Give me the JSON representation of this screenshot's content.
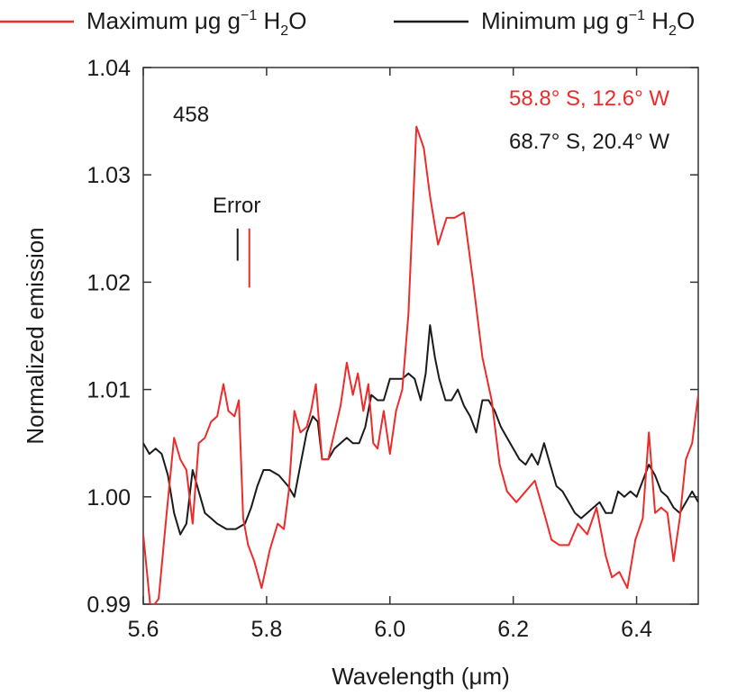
{
  "chart_data": {
    "type": "line",
    "panel_label": "458",
    "xlabel": "Wavelength (μm)",
    "ylabel": "Normalized emission",
    "xlim": [
      5.6,
      6.5
    ],
    "ylim": [
      0.99,
      1.04
    ],
    "x_ticks": [
      5.6,
      5.8,
      6.0,
      6.2,
      6.4
    ],
    "x_tick_labels": [
      "5.6",
      "5.8",
      "6.0",
      "6.2",
      "6.4"
    ],
    "y_ticks": [
      0.99,
      1.0,
      1.01,
      1.02,
      1.03,
      1.04
    ],
    "y_tick_labels": [
      "0.99",
      "1.00",
      "1.01",
      "1.02",
      "1.03",
      "1.04"
    ],
    "grid": false,
    "legend": {
      "placement": "top",
      "entries": [
        {
          "series": 0,
          "text": "Maximum μg g",
          "sup": "−1",
          "tail": " H",
          "sub": "2",
          "end": "O"
        },
        {
          "series": 1,
          "text": "Minimum μg g",
          "sup": "−1",
          "tail": " H",
          "sub": "2",
          "end": "O"
        }
      ]
    },
    "annotations": {
      "location_red": "58.8° S, 12.6° W",
      "location_black": "68.7° S, 20.4° W",
      "error_label": "Error",
      "error_bars": [
        {
          "series": 1,
          "x": 5.753,
          "y_low": 1.022,
          "y_high": 1.025
        },
        {
          "series": 0,
          "x": 5.772,
          "y_low": 1.0195,
          "y_high": 1.025
        }
      ]
    },
    "series": [
      {
        "name": "58.8° S, 12.6° W",
        "color": "#ee2b2b",
        "x": [
          5.6,
          5.612,
          5.625,
          5.638,
          5.65,
          5.66,
          5.67,
          5.68,
          5.69,
          5.7,
          5.71,
          5.72,
          5.73,
          5.738,
          5.748,
          5.755,
          5.762,
          5.77,
          5.78,
          5.792,
          5.805,
          5.818,
          5.828,
          5.836,
          5.845,
          5.855,
          5.865,
          5.872,
          5.88,
          5.89,
          5.9,
          5.91,
          5.92,
          5.93,
          5.94,
          5.948,
          5.957,
          5.965,
          5.973,
          5.98,
          5.99,
          6.0,
          6.01,
          6.02,
          6.03,
          6.043,
          6.055,
          6.065,
          6.078,
          6.092,
          6.105,
          6.12,
          6.135,
          6.15,
          6.165,
          6.178,
          6.19,
          6.205,
          6.22,
          6.235,
          6.25,
          6.262,
          6.275,
          6.29,
          6.305,
          6.32,
          6.335,
          6.35,
          6.36,
          6.372,
          6.385,
          6.398,
          6.41,
          6.42,
          6.43,
          6.44,
          6.45,
          6.46,
          6.47,
          6.48,
          6.49,
          6.5
        ],
        "y": [
          0.9965,
          0.9895,
          0.9905,
          0.9985,
          1.0055,
          1.0035,
          1.0025,
          0.9975,
          1.005,
          1.0055,
          1.007,
          1.0075,
          1.0105,
          1.008,
          1.0075,
          1.009,
          0.998,
          0.9955,
          0.994,
          0.9915,
          0.995,
          0.9975,
          0.997,
          1.0005,
          1.008,
          1.006,
          1.0065,
          1.008,
          1.0105,
          1.0035,
          1.0035,
          1.006,
          1.0085,
          1.0125,
          1.0095,
          1.0115,
          1.008,
          1.0105,
          1.005,
          1.0045,
          1.008,
          1.004,
          1.008,
          1.01,
          1.017,
          1.0345,
          1.0325,
          1.028,
          1.0235,
          1.026,
          1.026,
          1.0265,
          1.02,
          1.013,
          1.009,
          1.003,
          1.0005,
          0.9995,
          1.0005,
          1.0015,
          0.9985,
          0.996,
          0.9955,
          0.9955,
          0.9975,
          0.9965,
          0.999,
          0.9945,
          0.9925,
          0.993,
          0.9915,
          0.996,
          0.998,
          1.006,
          0.9985,
          0.999,
          0.9985,
          0.994,
          0.998,
          1.0035,
          1.005,
          1.0095
        ]
      },
      {
        "name": "68.7° S, 20.4° W",
        "color": "#1a1a1a",
        "x": [
          5.6,
          5.61,
          5.62,
          5.63,
          5.64,
          5.65,
          5.66,
          5.67,
          5.68,
          5.69,
          5.7,
          5.71,
          5.72,
          5.735,
          5.75,
          5.765,
          5.775,
          5.785,
          5.795,
          5.805,
          5.82,
          5.835,
          5.845,
          5.855,
          5.865,
          5.875,
          5.883,
          5.89,
          5.9,
          5.91,
          5.92,
          5.93,
          5.94,
          5.95,
          5.96,
          5.97,
          5.98,
          5.99,
          6.0,
          6.01,
          6.02,
          6.03,
          6.04,
          6.05,
          6.058,
          6.065,
          6.073,
          6.08,
          6.09,
          6.1,
          6.11,
          6.12,
          6.13,
          6.14,
          6.15,
          6.16,
          6.17,
          6.18,
          6.19,
          6.2,
          6.21,
          6.22,
          6.23,
          6.24,
          6.25,
          6.26,
          6.27,
          6.28,
          6.29,
          6.3,
          6.31,
          6.32,
          6.33,
          6.34,
          6.35,
          6.36,
          6.37,
          6.38,
          6.39,
          6.4,
          6.41,
          6.42,
          6.43,
          6.44,
          6.45,
          6.46,
          6.47,
          6.48,
          6.49,
          6.5
        ],
        "y": [
          1.005,
          1.004,
          1.0045,
          1.004,
          1.002,
          0.9985,
          0.9965,
          0.9975,
          1.0025,
          1.0005,
          0.9985,
          0.998,
          0.9975,
          0.997,
          0.997,
          0.9975,
          0.999,
          1.001,
          1.0025,
          1.0025,
          1.002,
          1.001,
          1.0,
          1.003,
          1.006,
          1.0075,
          1.007,
          1.0035,
          1.0035,
          1.0045,
          1.005,
          1.0055,
          1.005,
          1.005,
          1.0065,
          1.0095,
          1.009,
          1.009,
          1.011,
          1.011,
          1.011,
          1.0115,
          1.011,
          1.009,
          1.0115,
          1.016,
          1.013,
          1.011,
          1.009,
          1.009,
          1.01,
          1.0085,
          1.0075,
          1.006,
          1.009,
          1.009,
          1.008,
          1.0065,
          1.0055,
          1.0045,
          1.0035,
          1.003,
          1.004,
          1.003,
          1.005,
          1.003,
          1.001,
          1.0005,
          0.9995,
          0.9985,
          0.998,
          0.9985,
          0.999,
          0.9995,
          0.9985,
          0.9985,
          1.0005,
          1.0,
          1.0005,
          1.0,
          1.0015,
          1.003,
          1.002,
          1.0005,
          1.0,
          0.999,
          0.9985,
          0.9995,
          1.0005,
          0.9995
        ]
      }
    ]
  }
}
